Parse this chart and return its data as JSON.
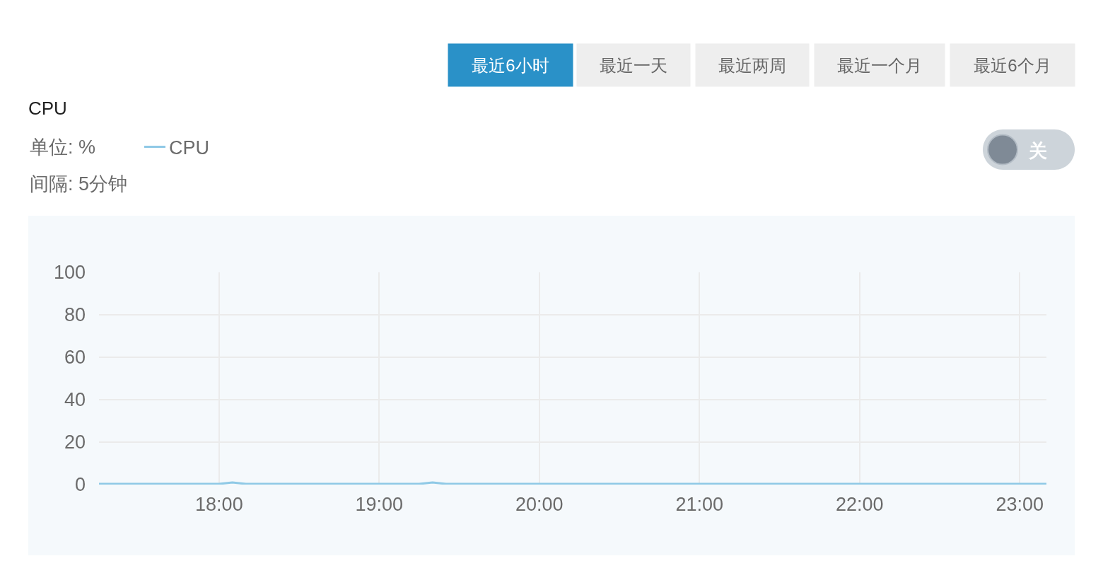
{
  "chart_data": {
    "type": "line",
    "title": "CPU",
    "subtitle": "间隔: 5分钟",
    "annotations": [
      "单位: %",
      "最近6小时",
      "最近一天",
      "最近两周",
      "最近一个月",
      "最近6个月",
      "关"
    ],
    "series": [
      {
        "name": "CPU",
        "color": "#8fc9e6",
        "x": [
          17.25,
          17.3333,
          17.4167,
          17.5,
          17.5833,
          17.6667,
          17.75,
          17.8333,
          17.9167,
          18,
          18.0833,
          18.1667,
          18.25,
          18.3333,
          18.4167,
          18.5,
          18.5833,
          18.6667,
          18.75,
          18.8333,
          18.9167,
          19,
          19.0833,
          19.1667,
          19.25,
          19.3333,
          19.4167,
          19.5,
          19.5833,
          19.6667,
          19.75,
          19.8333,
          19.9167,
          20,
          20.0833,
          20.1667,
          20.25,
          20.3333,
          20.4167,
          20.5,
          20.5833,
          20.6667,
          20.75,
          20.8333,
          20.9167,
          21,
          21.0833,
          21.1667,
          21.25,
          21.3333,
          21.4167,
          21.5,
          21.5833,
          21.6667,
          21.75,
          21.8333,
          21.9167,
          22,
          22.0833,
          22.1667,
          22.25,
          22.3333,
          22.4167,
          22.5,
          22.5833,
          22.6667,
          22.75,
          22.8333,
          22.9167,
          23,
          23.0833,
          23.1667
        ],
        "values": [
          0.3,
          0.3,
          0.3,
          0.3,
          0.3,
          0.3,
          0.3,
          0.3,
          0.3,
          0.3,
          1.0,
          0.3,
          0.3,
          0.3,
          0.3,
          0.3,
          0.3,
          0.3,
          0.3,
          0.3,
          0.3,
          0.3,
          0.3,
          0.3,
          0.3,
          1.0,
          0.3,
          0.3,
          0.3,
          0.3,
          0.3,
          0.3,
          0.3,
          0.3,
          0.3,
          0.3,
          0.3,
          0.3,
          0.3,
          0.3,
          0.3,
          0.3,
          0.3,
          0.3,
          0.3,
          0.3,
          0.3,
          0.3,
          0.3,
          0.3,
          0.3,
          0.3,
          0.3,
          0.3,
          0.3,
          0.3,
          0.3,
          0.3,
          0.3,
          0.3,
          0.3,
          0.3,
          0.3,
          0.3,
          0.3,
          0.3,
          0.3,
          0.3,
          0.3,
          0.3,
          0.3,
          0.3
        ]
      }
    ],
    "xlim": [
      17.25,
      23.1667
    ],
    "xticks": [
      {
        "value": 18,
        "label": "18:00"
      },
      {
        "value": 19,
        "label": "19:00"
      },
      {
        "value": 20,
        "label": "20:00"
      },
      {
        "value": 21,
        "label": "21:00"
      },
      {
        "value": 22,
        "label": "22:00"
      },
      {
        "value": 23,
        "label": "23:00"
      }
    ],
    "ylim": [
      0,
      100
    ],
    "yticks": [
      0,
      20,
      40,
      60,
      80,
      100
    ],
    "grid": true,
    "legend": "top left"
  }
}
